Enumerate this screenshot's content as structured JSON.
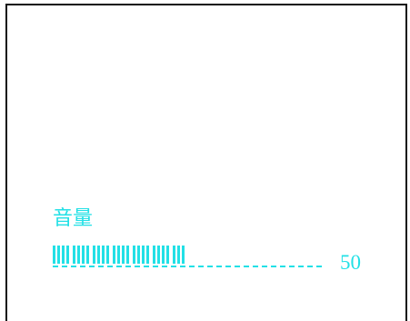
{
  "volume": {
    "label": "音量",
    "value_text": "50",
    "level_fraction": 0.5,
    "color": "#22e0e6"
  },
  "frame": {
    "border_color": "#111111"
  }
}
